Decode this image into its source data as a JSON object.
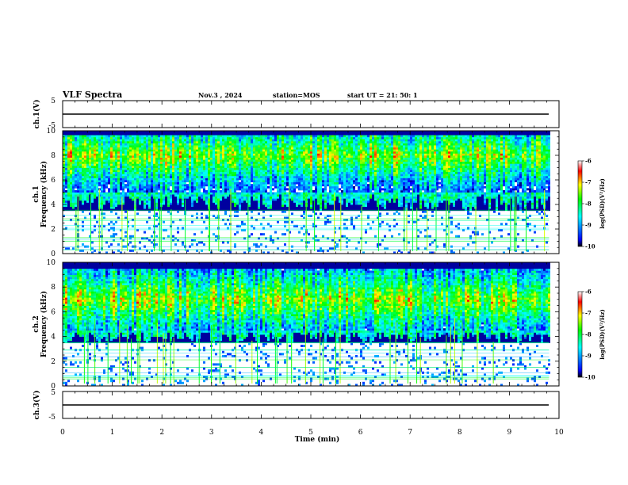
{
  "header": {
    "title": "VLF Spectra",
    "date": "Nov.3 , 2024",
    "station": "station=MOS",
    "start": "start UT = 21: 50: 1"
  },
  "colors": {
    "low": "#000000",
    "blue": "#0000ff",
    "cyan": "#00ffff",
    "green": "#00ff00",
    "yellow": "#ffff00",
    "red": "#ff0000",
    "high": "#ffffff"
  },
  "chart_data": [
    {
      "type": "line",
      "panel": "ch1-waveform",
      "ylabel": "ch.1(V)",
      "ylim": [
        -5,
        5
      ],
      "yticks": [
        "5",
        "-5"
      ],
      "xlim": [
        0,
        10
      ],
      "baseline": 0,
      "series": [
        {
          "x": [
            0,
            9.8
          ],
          "y": [
            0,
            0
          ]
        }
      ]
    },
    {
      "type": "heatmap",
      "panel": "ch1-spectrogram",
      "ylabel": "ch.1",
      "ylabel2": "Frequency (kHz)",
      "ylim": [
        0,
        10
      ],
      "yticks": [
        "0",
        "2",
        "4",
        "6",
        "8",
        "10"
      ],
      "xlim": [
        0,
        10
      ],
      "data_extent": [
        0,
        9.8
      ],
      "colorbar": {
        "label": "log(PSD)(V²/Hz)",
        "ticks": [
          "-10",
          "-9",
          "-8",
          "-7",
          "-6"
        ],
        "range": [
          -10,
          -6
        ]
      },
      "band_khz": [
        5.0,
        9.6
      ],
      "band_peak_khz": 8.0,
      "emission_floor_khz": 3.5
    },
    {
      "type": "heatmap",
      "panel": "ch2-spectrogram",
      "ylabel": "ch.2",
      "ylabel2": "Frequency (kHz)",
      "ylim": [
        0,
        10
      ],
      "yticks": [
        "0",
        "2",
        "4",
        "6",
        "8",
        "10"
      ],
      "xlim": [
        0,
        10
      ],
      "data_extent": [
        0,
        9.8
      ],
      "colorbar": {
        "label": "log(PSD)(V²/Hz)",
        "ticks": [
          "-10",
          "-9",
          "-8",
          "-7",
          "-6"
        ],
        "range": [
          -10,
          -6
        ]
      },
      "band_khz": [
        4.5,
        9.5
      ],
      "band_peak_khz": 7.0,
      "emission_floor_khz": 3.5
    },
    {
      "type": "line",
      "panel": "ch3-waveform",
      "ylabel": "ch.3(V)",
      "ylim": [
        -5,
        5
      ],
      "yticks": [
        "5",
        "-5"
      ],
      "xlim": [
        0,
        10
      ],
      "baseline": 0,
      "series": [
        {
          "x": [
            0,
            9.8
          ],
          "y": [
            0,
            0
          ]
        }
      ]
    }
  ],
  "xaxis": {
    "label": "Time (min)",
    "ticks": [
      "0",
      "1",
      "2",
      "3",
      "4",
      "5",
      "6",
      "7",
      "8",
      "9",
      "10"
    ]
  }
}
